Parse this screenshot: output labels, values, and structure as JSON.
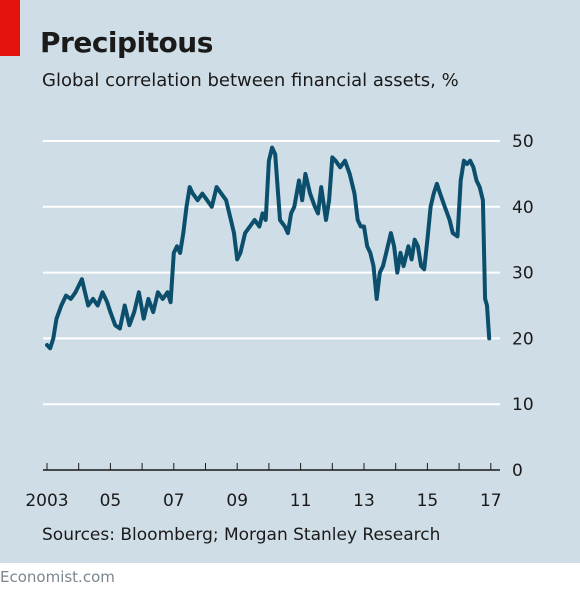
{
  "title": "Precipitous",
  "subtitle": "Global correlation between financial assets, %",
  "source": "Sources: Bloomberg; Morgan Stanley Research",
  "brand": "Economist.com",
  "colors": {
    "background": "#cfdde6",
    "accent": "#e3120b",
    "line": "#0b4f6c",
    "grid": "#ffffff"
  },
  "chart_data": {
    "type": "line",
    "title": "Precipitous",
    "subtitle": "Global correlation between financial assets, %",
    "xlabel": "",
    "ylabel": "",
    "ylim": [
      0,
      50
    ],
    "xlim": [
      2002.8,
      2017.3
    ],
    "y_ticks": [
      0,
      10,
      20,
      30,
      40,
      50
    ],
    "y_tick_labels": [
      "0",
      "10",
      "20",
      "30",
      "40",
      "50"
    ],
    "x_ticks": [
      2003,
      2005,
      2007,
      2009,
      2011,
      2013,
      2015,
      2017
    ],
    "x_tick_labels": [
      "2003",
      "05",
      "07",
      "09",
      "11",
      "13",
      "15",
      "17"
    ],
    "grid": "horizontal",
    "y_axis_side": "right",
    "series": [
      {
        "x": [
          2003.0,
          2003.1,
          2003.2,
          2003.3,
          2003.45,
          2003.6,
          2003.75,
          2003.9,
          2004.0,
          2004.1,
          2004.2,
          2004.3,
          2004.45,
          2004.6,
          2004.75,
          2004.9,
          2005.0,
          2005.15,
          2005.3,
          2005.45,
          2005.6,
          2005.75,
          2005.9,
          2006.05,
          2006.2,
          2006.35,
          2006.5,
          2006.65,
          2006.8,
          2006.9,
          2007.0,
          2007.1,
          2007.2,
          2007.3,
          2007.4,
          2007.5,
          2007.6,
          2007.75,
          2007.9,
          2008.05,
          2008.2,
          2008.35,
          2008.5,
          2008.65,
          2008.8,
          2008.9,
          2009.0,
          2009.1,
          2009.25,
          2009.4,
          2009.55,
          2009.7,
          2009.8,
          2009.9,
          2010.0,
          2010.1,
          2010.2,
          2010.35,
          2010.5,
          2010.6,
          2010.7,
          2010.8,
          2010.95,
          2011.05,
          2011.15,
          2011.3,
          2011.45,
          2011.55,
          2011.65,
          2011.8,
          2011.9,
          2012.0,
          2012.1,
          2012.25,
          2012.4,
          2012.55,
          2012.7,
          2012.8,
          2012.9,
          2013.0,
          2013.1,
          2013.2,
          2013.3,
          2013.4,
          2013.5,
          2013.6,
          2013.7,
          2013.85,
          2013.95,
          2014.05,
          2014.15,
          2014.25,
          2014.4,
          2014.5,
          2014.6,
          2014.7,
          2014.8,
          2014.9,
          2015.0,
          2015.1,
          2015.2,
          2015.3,
          2015.4,
          2015.55,
          2015.7,
          2015.8,
          2015.95,
          2016.05,
          2016.15,
          2016.25,
          2016.35,
          2016.45,
          2016.55,
          2016.65,
          2016.75,
          2016.82,
          2016.88,
          2016.95
        ],
        "values": [
          19,
          18.5,
          20,
          23,
          25,
          26.5,
          26,
          27,
          28,
          29,
          27,
          25,
          26,
          25,
          27,
          25.5,
          24,
          22,
          21.5,
          25,
          22,
          24,
          27,
          23,
          26,
          24,
          27,
          26,
          27,
          25.5,
          33,
          34,
          33,
          36,
          40,
          43,
          42,
          41,
          42,
          41,
          40,
          43,
          42,
          41,
          38,
          36,
          32,
          33,
          36,
          37,
          38,
          37,
          39,
          38,
          47,
          49,
          48,
          38,
          37,
          36,
          39,
          40,
          44,
          41,
          45,
          42,
          40,
          39,
          43,
          38,
          41,
          47.5,
          47,
          46,
          47,
          45,
          42,
          38,
          37,
          37,
          34,
          33,
          31,
          26,
          30,
          31,
          33,
          36,
          34,
          30,
          33,
          31,
          34,
          32,
          35,
          34,
          31,
          30.5,
          35,
          40,
          42,
          43.5,
          42,
          40,
          38,
          36,
          35.5,
          44,
          47,
          46.5,
          47,
          46,
          44,
          43,
          41,
          26,
          25,
          20
        ]
      }
    ]
  }
}
